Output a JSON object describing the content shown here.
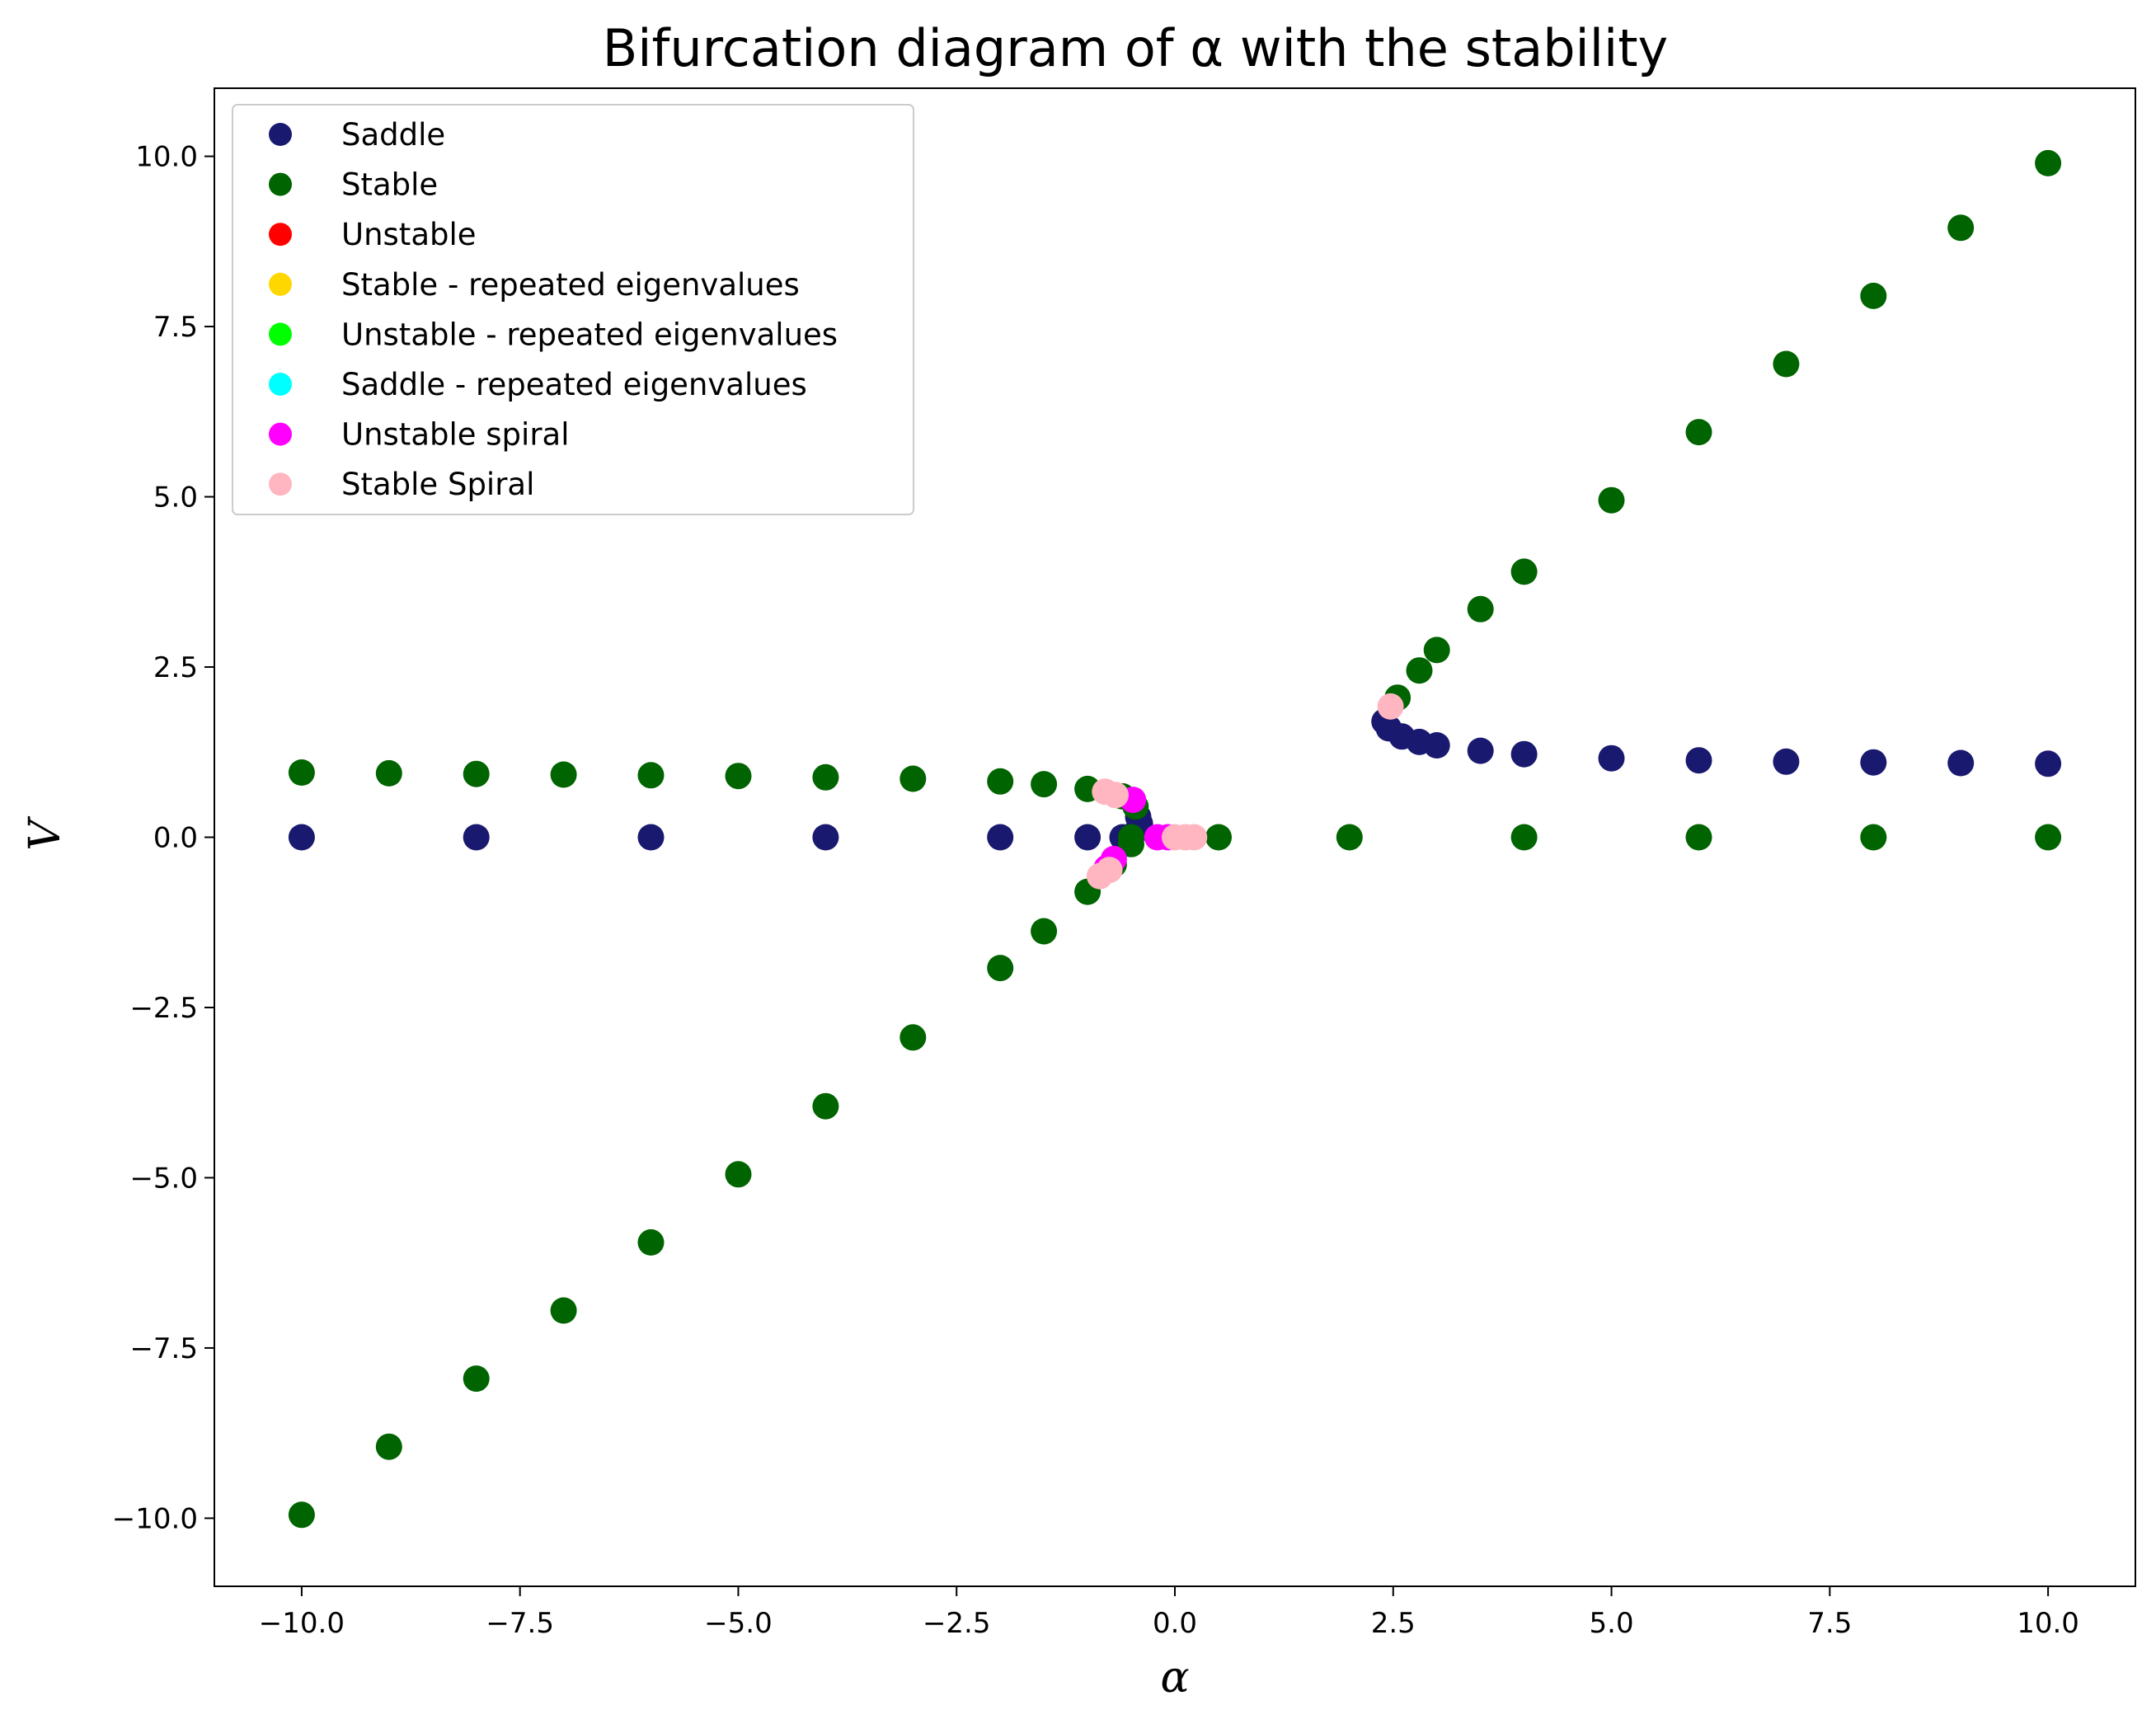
{
  "chart_data": {
    "type": "scatter",
    "title": "Bifurcation diagram of α with the stability",
    "xlabel": "α",
    "ylabel": "V",
    "xlim": [
      -11,
      11
    ],
    "ylim": [
      -11,
      11
    ],
    "x_ticks": [
      -10,
      -7.5,
      -5,
      -2.5,
      0,
      2.5,
      5,
      7.5,
      10
    ],
    "y_ticks": [
      -10,
      -7.5,
      -5,
      -2.5,
      0,
      2.5,
      5,
      7.5,
      10
    ],
    "x_tick_labels": [
      "−10.0",
      "−7.5",
      "−5.0",
      "−2.5",
      "0.0",
      "2.5",
      "5.0",
      "7.5",
      "10.0"
    ],
    "y_tick_labels": [
      "−10.0",
      "−7.5",
      "−5.0",
      "−2.5",
      "0.0",
      "2.5",
      "5.0",
      "7.5",
      "10.0"
    ],
    "grid": false,
    "legend_position": "top-left",
    "legend": [
      {
        "name": "Saddle",
        "color": "#191970"
      },
      {
        "name": "Stable",
        "color": "#006400"
      },
      {
        "name": "Unstable",
        "color": "#ff0000"
      },
      {
        "name": "Stable - repeated eigenvalues",
        "color": "#ffd700"
      },
      {
        "name": "Unstable - repeated eigenvalues",
        "color": "#00ff00"
      },
      {
        "name": "Saddle - repeated eigenvalues",
        "color": "#00ffff"
      },
      {
        "name": "Unstable spiral",
        "color": "#ff00ff"
      },
      {
        "name": "Stable Spiral",
        "color": "#ffb6c1"
      }
    ],
    "series": [
      {
        "name": "Saddle",
        "color": "#191970",
        "points": [
          [
            -10,
            0
          ],
          [
            -8,
            0
          ],
          [
            -6,
            0
          ],
          [
            -4,
            0
          ],
          [
            -2,
            0
          ],
          [
            -1,
            0
          ],
          [
            -0.6,
            0
          ],
          [
            -0.42,
            0.12
          ],
          [
            -0.4,
            0.2
          ],
          [
            -0.42,
            0.3
          ],
          [
            2.4,
            1.7
          ],
          [
            2.45,
            1.6
          ],
          [
            2.6,
            1.48
          ],
          [
            2.8,
            1.4
          ],
          [
            3.0,
            1.35
          ],
          [
            3.5,
            1.27
          ],
          [
            4,
            1.22
          ],
          [
            5,
            1.16
          ],
          [
            6,
            1.13
          ],
          [
            7,
            1.11
          ],
          [
            8,
            1.1
          ],
          [
            9,
            1.09
          ],
          [
            10,
            1.08
          ]
        ]
      },
      {
        "name": "Stable",
        "color": "#006400",
        "points": [
          [
            -10,
            -9.95
          ],
          [
            -9,
            -8.95
          ],
          [
            -8,
            -7.95
          ],
          [
            -7,
            -6.95
          ],
          [
            -6,
            -5.95
          ],
          [
            -5,
            -4.95
          ],
          [
            -4,
            -3.95
          ],
          [
            -3,
            -2.94
          ],
          [
            -2,
            -1.92
          ],
          [
            -1.5,
            -1.38
          ],
          [
            -1,
            -0.8
          ],
          [
            -0.7,
            -0.4
          ],
          [
            -0.5,
            -0.1
          ],
          [
            -10,
            0.95
          ],
          [
            -9,
            0.94
          ],
          [
            -8,
            0.93
          ],
          [
            -7,
            0.92
          ],
          [
            -6,
            0.91
          ],
          [
            -5,
            0.9
          ],
          [
            -4,
            0.88
          ],
          [
            -3,
            0.86
          ],
          [
            -2,
            0.82
          ],
          [
            -1.5,
            0.78
          ],
          [
            -1,
            0.71
          ],
          [
            -0.6,
            0.6
          ],
          [
            -0.45,
            0.45
          ],
          [
            -0.5,
            0
          ],
          [
            0.5,
            0
          ],
          [
            2,
            0
          ],
          [
            4,
            0
          ],
          [
            6,
            0
          ],
          [
            8,
            0
          ],
          [
            10,
            0
          ],
          [
            2.55,
            2.05
          ],
          [
            2.8,
            2.45
          ],
          [
            3,
            2.75
          ],
          [
            3.5,
            3.35
          ],
          [
            4,
            3.9
          ],
          [
            5,
            4.95
          ],
          [
            6,
            5.95
          ],
          [
            7,
            6.95
          ],
          [
            8,
            7.95
          ],
          [
            9,
            8.95
          ],
          [
            10,
            9.9
          ]
        ]
      },
      {
        "name": "Unstable spiral",
        "color": "#ff00ff",
        "points": [
          [
            -0.48,
            0.55
          ],
          [
            -0.7,
            -0.32
          ],
          [
            -0.78,
            -0.45
          ],
          [
            -0.2,
            0
          ],
          [
            -0.08,
            0
          ]
        ]
      },
      {
        "name": "Stable Spiral",
        "color": "#ffb6c1",
        "points": [
          [
            -0.8,
            0.67
          ],
          [
            -0.68,
            0.62
          ],
          [
            -0.86,
            -0.57
          ],
          [
            -0.75,
            -0.48
          ],
          [
            0,
            0
          ],
          [
            0.12,
            0
          ],
          [
            0.22,
            0
          ],
          [
            2.47,
            1.92
          ]
        ]
      }
    ]
  }
}
